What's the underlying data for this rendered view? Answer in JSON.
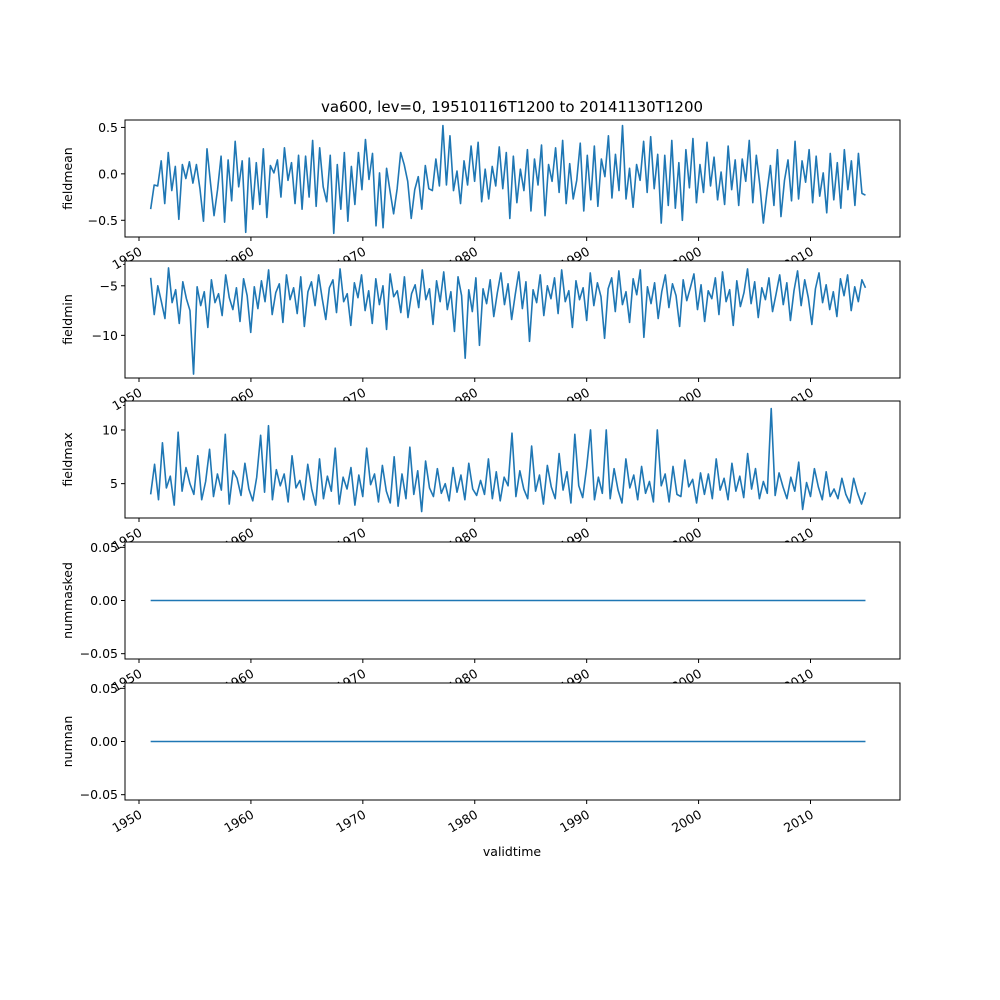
{
  "chart_data": {
    "type": "line",
    "title": "va600, lev=0, 19510116T1200 to 20141130T1200",
    "xlabel": "validtime",
    "x_range": [
      "1951-01-16",
      "2014-11-30"
    ],
    "xlim": [
      "1948-10-01",
      "2017-12-31"
    ],
    "x_ticks": [
      "1950",
      "1960",
      "1970",
      "1980",
      "1990",
      "2000",
      "2010"
    ],
    "line_color": "#1f77b4",
    "panels": [
      {
        "name": "fieldmean",
        "ylabel": "fieldmean",
        "ylim": [
          -0.68,
          0.58
        ],
        "y_ticks": [
          0.5,
          0.0,
          -0.5
        ],
        "y_tick_labels": [
          "0.5",
          "0.0",
          "−0.5"
        ],
        "values": [
          -0.38,
          -0.12,
          -0.13,
          0.14,
          -0.32,
          0.23,
          -0.18,
          0.08,
          -0.49,
          0.1,
          -0.05,
          0.13,
          -0.1,
          0.1,
          -0.16,
          -0.51,
          0.27,
          -0.1,
          -0.45,
          -0.17,
          0.19,
          -0.52,
          0.15,
          -0.29,
          0.35,
          -0.14,
          0.14,
          -0.63,
          0.17,
          -0.38,
          0.12,
          -0.33,
          0.27,
          -0.47,
          0.09,
          0.01,
          0.15,
          -0.25,
          0.28,
          -0.07,
          0.12,
          -0.32,
          0.2,
          -0.38,
          0.19,
          -0.25,
          0.36,
          -0.35,
          0.28,
          -0.14,
          -0.3,
          0.2,
          -0.64,
          0.1,
          -0.38,
          0.23,
          -0.51,
          0.08,
          -0.33,
          0.23,
          -0.17,
          0.37,
          -0.06,
          0.22,
          -0.56,
          0.01,
          -0.58,
          0.06,
          -0.19,
          -0.43,
          -0.16,
          0.23,
          0.1,
          -0.08,
          -0.48,
          -0.17,
          -0.03,
          -0.38,
          0.09,
          -0.16,
          -0.18,
          0.16,
          -0.13,
          0.52,
          -0.12,
          0.41,
          -0.18,
          0.03,
          -0.32,
          0.14,
          -0.12,
          0.3,
          -0.08,
          0.34,
          -0.3,
          0.05,
          -0.27,
          0.08,
          -0.13,
          0.29,
          -0.16,
          0.23,
          -0.48,
          0.19,
          -0.31,
          0.05,
          -0.18,
          0.26,
          -0.4,
          0.16,
          -0.12,
          0.31,
          -0.45,
          0.1,
          -0.08,
          0.28,
          -0.2,
          0.36,
          -0.32,
          0.11,
          -0.27,
          -0.07,
          0.33,
          -0.4,
          0.2,
          -0.28,
          0.3,
          -0.35,
          0.16,
          -0.03,
          0.41,
          -0.26,
          0.21,
          -0.18,
          0.52,
          -0.27,
          0.06,
          -0.36,
          0.1,
          -0.07,
          0.35,
          -0.2,
          0.4,
          -0.16,
          0.21,
          -0.53,
          0.2,
          -0.34,
          0.36,
          -0.37,
          0.12,
          -0.5,
          0.26,
          -0.15,
          0.38,
          -0.31,
          0.1,
          -0.2,
          0.34,
          -0.13,
          0.18,
          -0.28,
          0.02,
          -0.33,
          0.3,
          -0.17,
          0.15,
          -0.34,
          0.16,
          -0.08,
          0.36,
          -0.31,
          0.2,
          -0.12,
          -0.53,
          -0.2,
          0.09,
          -0.34,
          0.26,
          -0.46,
          -0.07,
          0.15,
          -0.29,
          0.35,
          -0.27,
          0.14,
          -0.09,
          0.26,
          -0.31,
          0.19,
          -0.24,
          0.01,
          -0.42,
          0.22,
          -0.28,
          0.12,
          -0.37,
          0.26,
          -0.17,
          0.14,
          -0.34,
          0.22,
          -0.21,
          -0.23
        ],
        "note_peak": 0.52,
        "note_min": -0.65
      },
      {
        "name": "fieldmin",
        "ylabel": "fieldmin",
        "ylim": [
          -14.3,
          -2.5
        ],
        "y_ticks": [
          -5,
          -10
        ],
        "y_tick_labels": [
          "−5",
          "−10"
        ],
        "values": [
          -4.2,
          -7.9,
          -5.0,
          -6.6,
          -8.3,
          -3.2,
          -6.7,
          -5.4,
          -8.8,
          -4.6,
          -6.3,
          -7.5,
          -13.9,
          -5.1,
          -7.0,
          -5.6,
          -9.2,
          -4.4,
          -6.7,
          -5.8,
          -8.0,
          -3.9,
          -6.2,
          -7.4,
          -5.2,
          -8.6,
          -4.3,
          -6.0,
          -9.7,
          -5.1,
          -7.3,
          -4.5,
          -6.6,
          -3.4,
          -7.9,
          -5.7,
          -4.8,
          -8.7,
          -3.9,
          -6.4,
          -5.2,
          -7.8,
          -4.1,
          -9.1,
          -5.6,
          -4.6,
          -7.0,
          -3.9,
          -6.3,
          -8.4,
          -5.2,
          -4.4,
          -7.7,
          -3.3,
          -6.6,
          -5.8,
          -9.0,
          -4.7,
          -6.2,
          -3.9,
          -7.5,
          -5.5,
          -8.8,
          -4.3,
          -6.9,
          -5.0,
          -9.4,
          -3.8,
          -6.1,
          -5.5,
          -7.7,
          -4.1,
          -8.2,
          -5.8,
          -4.9,
          -7.2,
          -3.4,
          -6.4,
          -5.3,
          -8.9,
          -4.5,
          -6.6,
          -3.6,
          -7.4,
          -5.6,
          -9.6,
          -4.1,
          -6.0,
          -12.3,
          -5.4,
          -7.6,
          -4.2,
          -11.0,
          -5.3,
          -6.8,
          -4.4,
          -8.1,
          -5.7,
          -3.7,
          -6.9,
          -4.8,
          -8.4,
          -5.9,
          -3.6,
          -7.3,
          -4.6,
          -10.6,
          -5.4,
          -6.7,
          -3.9,
          -8.0,
          -5.0,
          -6.3,
          -4.2,
          -7.8,
          -3.4,
          -6.6,
          -5.5,
          -9.2,
          -4.5,
          -6.4,
          -5.2,
          -8.5,
          -3.7,
          -7.0,
          -4.7,
          -6.1,
          -10.3,
          -5.3,
          -4.2,
          -7.6,
          -3.5,
          -6.9,
          -5.6,
          -8.7,
          -4.3,
          -5.9,
          -3.4,
          -10.2,
          -5.1,
          -6.8,
          -4.7,
          -8.3,
          -5.6,
          -3.9,
          -7.2,
          -4.8,
          -6.0,
          -9.1,
          -4.4,
          -6.5,
          -5.2,
          -3.8,
          -7.4,
          -4.9,
          -8.6,
          -5.5,
          -6.3,
          -4.2,
          -7.9,
          -3.6,
          -6.6,
          -5.4,
          -9.0,
          -4.5,
          -7.1,
          -5.7,
          -3.3,
          -6.8,
          -4.6,
          -8.2,
          -5.2,
          -6.4,
          -4.2,
          -7.6,
          -5.8,
          -3.9,
          -6.9,
          -4.7,
          -8.5,
          -5.5,
          -3.5,
          -7.0,
          -4.4,
          -6.2,
          -8.9,
          -5.3,
          -3.7,
          -6.7,
          -4.9,
          -7.4,
          -5.6,
          -8.1,
          -4.3,
          -6.0,
          -3.9,
          -7.5,
          -5.1,
          -6.6,
          -4.4,
          -5.2
        ]
      },
      {
        "name": "fieldmax",
        "ylabel": "fieldmax",
        "ylim": [
          1.8,
          12.7
        ],
        "y_ticks": [
          10,
          5
        ],
        "y_tick_labels": [
          "10",
          "5"
        ],
        "values": [
          4.0,
          6.8,
          3.5,
          8.8,
          4.6,
          5.7,
          3.0,
          9.8,
          4.3,
          6.5,
          5.0,
          4.0,
          7.6,
          3.5,
          5.2,
          8.2,
          3.8,
          5.9,
          4.4,
          9.6,
          3.1,
          6.2,
          5.5,
          3.9,
          6.9,
          4.5,
          3.4,
          5.6,
          9.5,
          4.2,
          10.4,
          3.5,
          6.3,
          4.8,
          5.9,
          3.3,
          7.6,
          4.6,
          5.3,
          3.5,
          6.8,
          4.5,
          3.0,
          7.3,
          3.6,
          5.7,
          4.3,
          8.3,
          3.1,
          5.6,
          4.5,
          6.5,
          3.0,
          5.8,
          3.8,
          8.3,
          4.9,
          5.9,
          3.3,
          6.7,
          4.3,
          3.2,
          7.5,
          2.9,
          5.9,
          3.6,
          8.4,
          4.0,
          6.2,
          2.4,
          7.1,
          4.6,
          3.8,
          6.4,
          4.1,
          5.0,
          3.4,
          6.5,
          4.2,
          5.8,
          3.5,
          6.9,
          4.5,
          3.9,
          5.3,
          4.0,
          7.3,
          3.6,
          6.1,
          3.4,
          5.6,
          4.8,
          9.7,
          3.8,
          6.2,
          4.5,
          3.6,
          8.5,
          4.3,
          5.8,
          3.1,
          6.7,
          4.7,
          3.6,
          7.8,
          4.4,
          6.1,
          3.2,
          9.6,
          4.8,
          3.7,
          6.5,
          10.0,
          3.5,
          5.6,
          4.1,
          10.0,
          3.6,
          6.4,
          4.4,
          3.2,
          7.3,
          4.6,
          5.8,
          3.5,
          6.6,
          4.1,
          5.2,
          3.3,
          10.0,
          4.8,
          5.9,
          3.3,
          6.6,
          4.0,
          3.8,
          7.2,
          4.7,
          5.4,
          3.2,
          6.0,
          4.0,
          5.9,
          3.6,
          7.3,
          4.4,
          5.5,
          3.5,
          6.9,
          4.3,
          5.7,
          3.7,
          7.8,
          4.5,
          6.4,
          3.6,
          5.2,
          4.1,
          12.0,
          3.9,
          6.0,
          4.7,
          3.6,
          5.6,
          4.3,
          7.0,
          2.6,
          5.1,
          3.8,
          6.4,
          4.7,
          3.5,
          6.1,
          3.8,
          4.5,
          3.6,
          5.5,
          4.0,
          3.2,
          5.5,
          4.1,
          3.1,
          4.2
        ]
      },
      {
        "name": "nummasked",
        "ylabel": "nummasked",
        "ylim": [
          -0.055,
          0.055
        ],
        "y_ticks": [
          0.05,
          0.0,
          -0.05
        ],
        "y_tick_labels": [
          "0.05",
          "0.00",
          "−0.05"
        ],
        "values": [
          0,
          0
        ]
      },
      {
        "name": "numnan",
        "ylabel": "numnan",
        "ylim": [
          -0.055,
          0.055
        ],
        "y_ticks": [
          0.05,
          0.0,
          -0.05
        ],
        "y_tick_labels": [
          "0.05",
          "0.00",
          "−0.05"
        ],
        "values": [
          0,
          0
        ]
      }
    ]
  }
}
